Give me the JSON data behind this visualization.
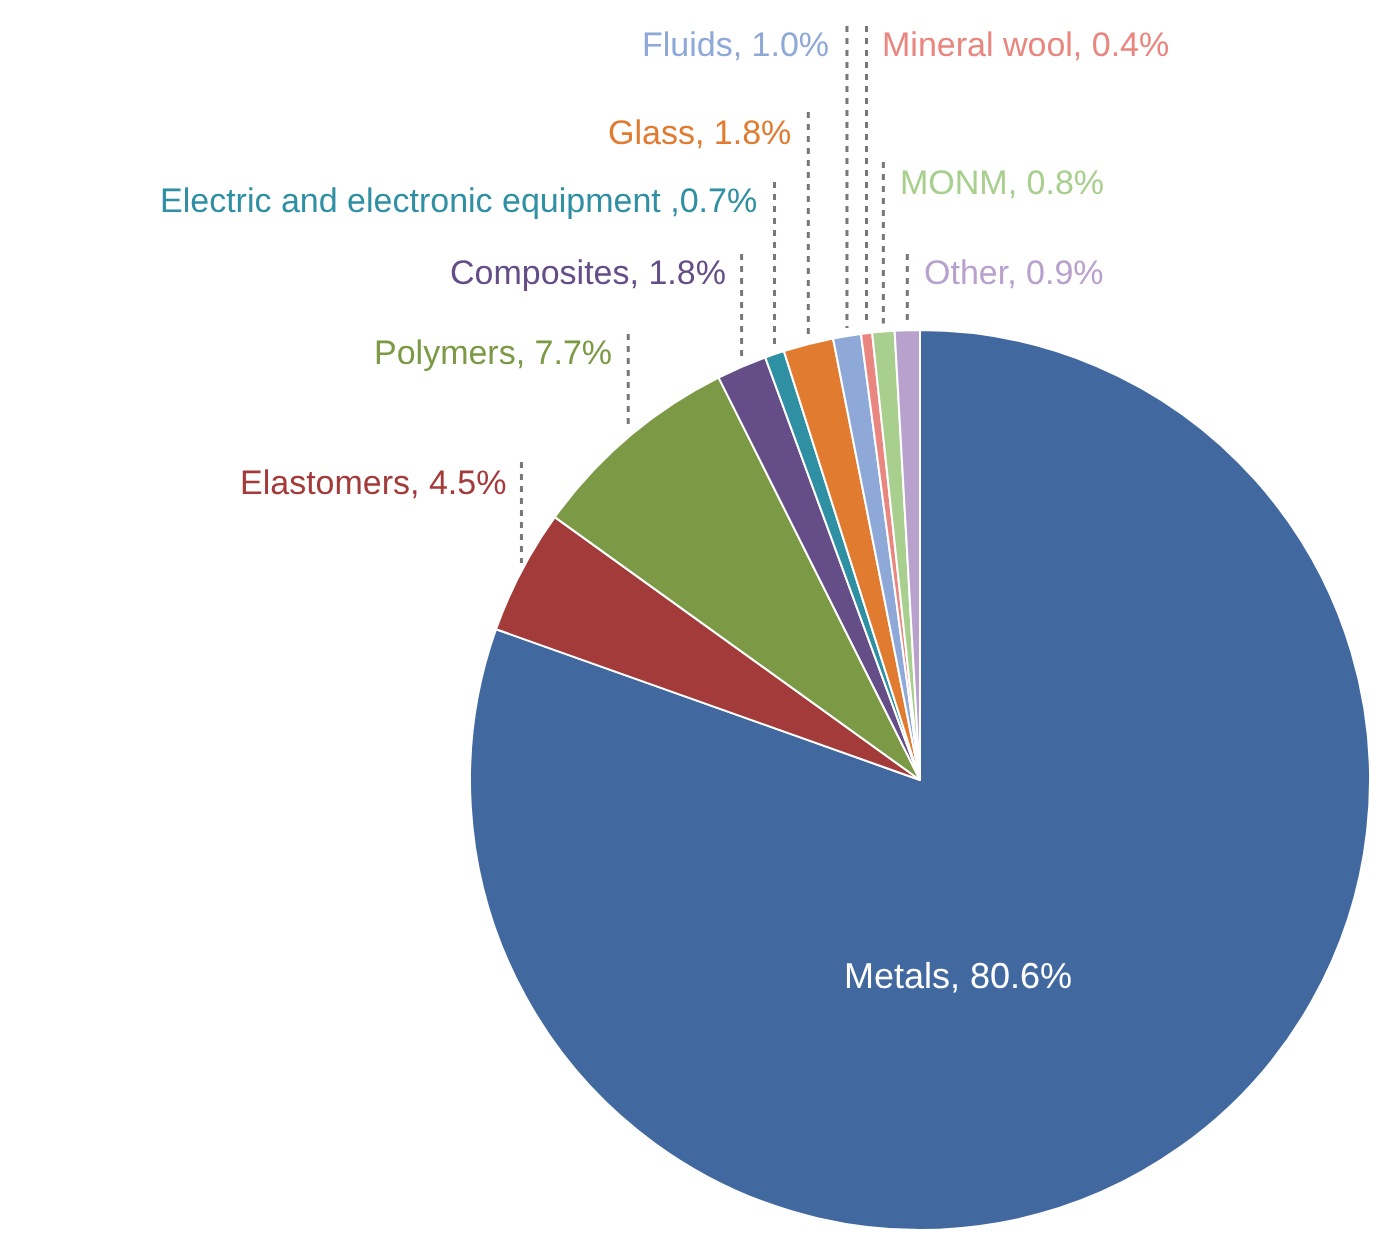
{
  "chart_data": {
    "type": "pie",
    "categories": [
      "Metals",
      "Elastomers",
      "Polymers",
      "Composites",
      "Electric and electronic equipment",
      "Glass",
      "Fluids",
      "Mineral wool",
      "MONM",
      "Other"
    ],
    "values": [
      80.6,
      4.5,
      7.7,
      1.8,
      0.7,
      1.8,
      1.0,
      0.4,
      0.8,
      0.9
    ],
    "colors": [
      "#41699f",
      "#a33b3b",
      "#7c9a45",
      "#654d87",
      "#2f8fa3",
      "#e07b30",
      "#8ea9d8",
      "#e8867f",
      "#a8cf8e",
      "#b8a1cc"
    ],
    "value_labels": [
      ", 80.6%",
      ", 4.5%",
      ", 7.7%",
      ", 1.8%",
      " ,0.7%",
      ", 1.8%",
      ", 1.0%",
      ", 0.4%",
      ", 0.8%",
      ", 0.9%"
    ],
    "legend": false
  }
}
